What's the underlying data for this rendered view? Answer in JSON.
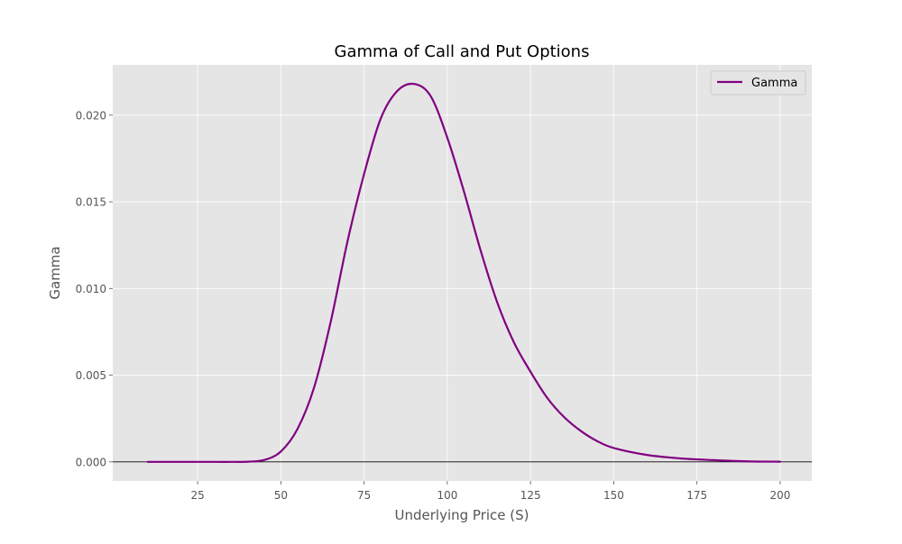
{
  "chart_data": {
    "type": "line",
    "title": "Gamma of Call and Put Options",
    "xlabel": "Underlying Price (S)",
    "ylabel": "Gamma",
    "xlim": [
      -0.5,
      209.5
    ],
    "ylim": [
      -0.0011,
      0.0229
    ],
    "x_ticks": [
      25,
      50,
      75,
      100,
      125,
      150,
      175,
      200
    ],
    "y_ticks": [
      0.0,
      0.005,
      0.01,
      0.015,
      0.02
    ],
    "y_tick_labels": [
      "0.000",
      "0.005",
      "0.010",
      "0.015",
      "0.020"
    ],
    "grid": true,
    "legend": "top-right",
    "zero_line": true,
    "colors": {
      "series": "#800080",
      "plot_bg": "#e5e5e5",
      "grid": "#ffffff",
      "zero_line": "#000000"
    },
    "series": [
      {
        "name": "Gamma",
        "x": [
          10,
          20,
          30,
          35,
          40,
          45,
          50,
          55,
          60,
          65,
          70,
          75,
          80,
          85,
          90,
          95,
          100,
          105,
          110,
          115,
          120,
          125,
          130,
          135,
          140,
          145,
          150,
          160,
          170,
          180,
          190,
          200
        ],
        "values": [
          0.0,
          0.0,
          0.0,
          0.0,
          1e-05,
          0.00011,
          0.0006,
          0.0019,
          0.0043,
          0.0081,
          0.0127,
          0.0166,
          0.0198,
          0.0214,
          0.0218,
          0.0211,
          0.0187,
          0.0156,
          0.0122,
          0.0092,
          0.0069,
          0.0052,
          0.0037,
          0.0026,
          0.0018,
          0.0012,
          0.0008,
          0.0004,
          0.0002,
          0.0001,
          3e-05,
          1e-05
        ]
      }
    ]
  }
}
